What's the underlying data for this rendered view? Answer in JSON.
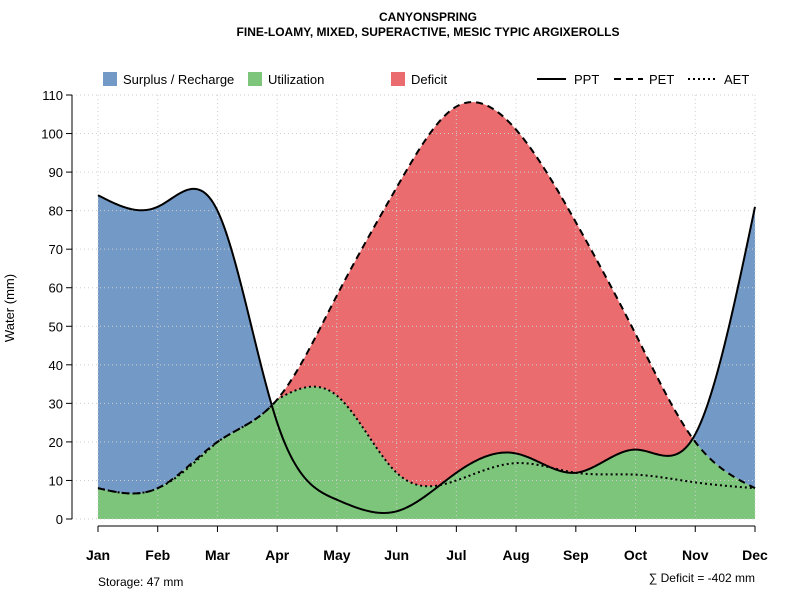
{
  "chart_data": {
    "type": "area",
    "title": "CANYONSPRING",
    "subtitle": "FINE-LOAMY, MIXED, SUPERACTIVE, MESIC TYPIC ARGIXEROLLS",
    "xlabel": "",
    "ylabel": "Water (mm)",
    "ylim": [
      0,
      110
    ],
    "yticks": [
      0,
      10,
      20,
      30,
      40,
      50,
      60,
      70,
      80,
      90,
      100,
      110
    ],
    "grid": true,
    "legend_position": "top",
    "categories": [
      "Jan",
      "Feb",
      "Mar",
      "Apr",
      "May",
      "Jun",
      "Jul",
      "Aug",
      "Sep",
      "Oct",
      "Nov",
      "Dec"
    ],
    "series": [
      {
        "name": "PPT",
        "style": "solid",
        "values": [
          84,
          81,
          80,
          25,
          5,
          2,
          12,
          17,
          12,
          18,
          22,
          81
        ]
      },
      {
        "name": "PET",
        "style": "dashed",
        "values": [
          8,
          8,
          20,
          31,
          58,
          86,
          107,
          101,
          77,
          48,
          20,
          8
        ]
      },
      {
        "name": "AET",
        "style": "dotted",
        "values": [
          8,
          8,
          20,
          31,
          32,
          12,
          10,
          14.5,
          12,
          11.5,
          9.5,
          8
        ]
      }
    ],
    "legend": {
      "areas": [
        {
          "label": "Surplus / Recharge",
          "color": "#7399c6"
        },
        {
          "label": "Utilization",
          "color": "#7dc57a"
        },
        {
          "label": "Deficit",
          "color": "#ea6c6e"
        }
      ],
      "lines": [
        {
          "label": "PPT",
          "style": "solid"
        },
        {
          "label": "PET",
          "style": "dashed"
        },
        {
          "label": "AET",
          "style": "dotted"
        }
      ]
    },
    "annotations": {
      "storage": "Storage: 47 mm",
      "deficit": "∑ Deficit = -402 mm"
    }
  }
}
